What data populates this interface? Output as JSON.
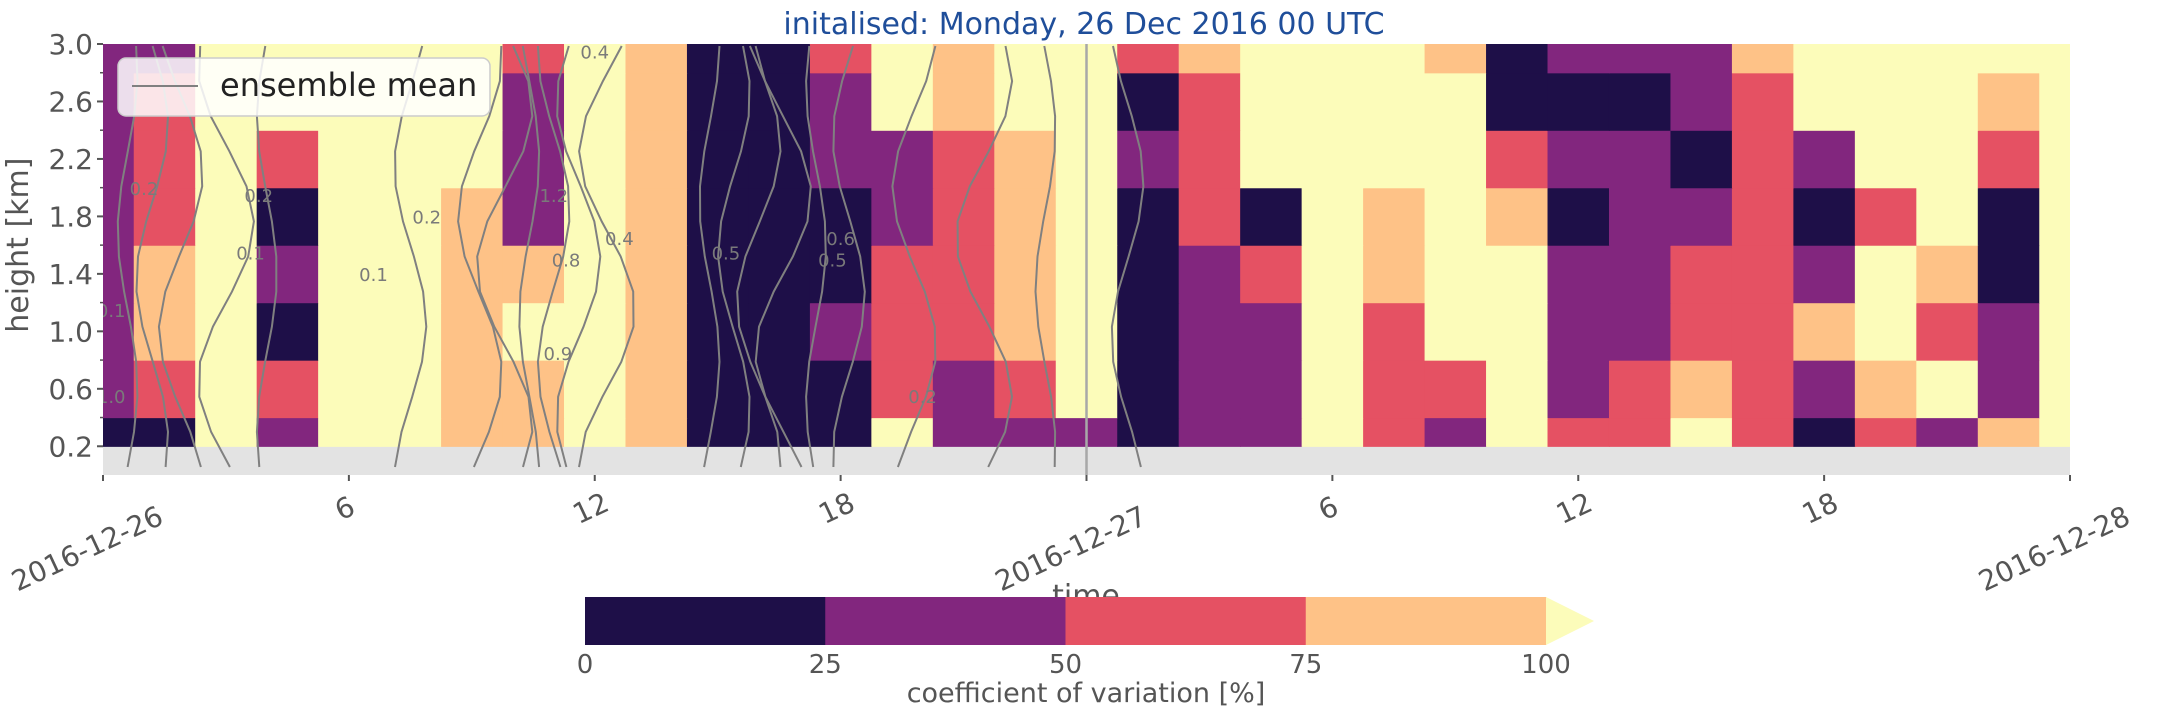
{
  "chart_data": {
    "type": "heatmap",
    "title": "initalised: Monday, 26 Dec 2016 00 UTC",
    "title_color": "#1f4e9a",
    "xlabel": "time",
    "ylabel": "height [km]",
    "x_range_hours": [
      0,
      48
    ],
    "y_range_km": [
      0.0,
      3.0
    ],
    "x_ticks": [
      {
        "hour": 0,
        "label": "2016-12-26"
      },
      {
        "hour": 6,
        "label": "6"
      },
      {
        "hour": 12,
        "label": "12"
      },
      {
        "hour": 18,
        "label": "18"
      },
      {
        "hour": 24,
        "label": "2016-12-27"
      },
      {
        "hour": 30,
        "label": "6"
      },
      {
        "hour": 36,
        "label": "12"
      },
      {
        "hour": 42,
        "label": "18"
      },
      {
        "hour": 48,
        "label": "2016-12-28"
      }
    ],
    "y_ticks": [
      {
        "value": 0.2,
        "label": "0.2"
      },
      {
        "value": 0.6,
        "label": "0.6"
      },
      {
        "value": 1.0,
        "label": "1.0"
      },
      {
        "value": 1.4,
        "label": "1.4"
      },
      {
        "value": 1.8,
        "label": "1.8"
      },
      {
        "value": 2.2,
        "label": "2.2"
      },
      {
        "value": 2.6,
        "label": "2.6"
      },
      {
        "value": 3.0,
        "label": "3.0"
      }
    ],
    "init_line_hour": 24,
    "legend": {
      "label": "ensemble mean",
      "line_color": "#808080",
      "position": "upper-left"
    },
    "colorbar": {
      "label": "coefficient of variation [%]",
      "bounds": [
        0,
        25,
        50,
        75,
        100
      ],
      "tick_labels": [
        "0",
        "25",
        "50",
        "75",
        "100"
      ],
      "colors": [
        "#1e0f48",
        "#82267e",
        "#e55163",
        "#fec287",
        "#fcfcba"
      ],
      "extend": "max"
    },
    "no_data_color": "#e3e3e3",
    "heights_km": [
      0.2,
      0.6,
      1.0,
      1.4,
      1.8,
      2.2,
      2.6,
      3.0
    ],
    "time_hours": [
      0,
      1.5,
      3,
      4.5,
      6,
      7.5,
      9,
      10.5,
      12,
      13.5,
      15,
      16.5,
      18,
      19.5,
      21,
      22.5,
      24,
      25.5,
      27,
      28.5,
      30,
      31.5,
      33,
      34.5,
      36,
      37.5,
      39,
      40.5,
      42,
      43.5,
      45,
      46.5,
      48
    ],
    "cov_percent_rows_by_height": [
      [
        15,
        20,
        110,
        40,
        110,
        110,
        90,
        90,
        110,
        80,
        20,
        10,
        20,
        110,
        35,
        40,
        35,
        10,
        35,
        35,
        110,
        60,
        30,
        110,
        70,
        60,
        110,
        70,
        20,
        60,
        30,
        80,
        110
      ],
      [
        30,
        60,
        110,
        60,
        110,
        110,
        85,
        95,
        110,
        80,
        15,
        10,
        20,
        60,
        35,
        60,
        110,
        10,
        35,
        30,
        110,
        60,
        60,
        110,
        40,
        60,
        80,
        60,
        40,
        80,
        110,
        40,
        110
      ],
      [
        40,
        80,
        110,
        20,
        110,
        110,
        85,
        100,
        110,
        80,
        15,
        15,
        30,
        60,
        50,
        80,
        110,
        10,
        35,
        40,
        110,
        60,
        110,
        110,
        35,
        45,
        50,
        60,
        80,
        110,
        60,
        30,
        110
      ],
      [
        45,
        80,
        110,
        40,
        110,
        110,
        85,
        90,
        110,
        80,
        15,
        10,
        20,
        60,
        70,
        90,
        110,
        15,
        40,
        60,
        110,
        80,
        110,
        110,
        25,
        40,
        50,
        60,
        30,
        110,
        80,
        20,
        110
      ],
      [
        45,
        70,
        110,
        20,
        110,
        110,
        90,
        40,
        110,
        80,
        15,
        10,
        20,
        30,
        60,
        90,
        110,
        20,
        50,
        20,
        110,
        80,
        110,
        90,
        20,
        30,
        40,
        60,
        20,
        60,
        110,
        20,
        110
      ],
      [
        40,
        60,
        110,
        60,
        110,
        110,
        110,
        40,
        110,
        80,
        15,
        10,
        40,
        30,
        60,
        90,
        110,
        40,
        60,
        110,
        110,
        110,
        110,
        60,
        30,
        40,
        20,
        60,
        40,
        110,
        110,
        60,
        110
      ],
      [
        35,
        60,
        110,
        110,
        110,
        110,
        110,
        40,
        110,
        80,
        15,
        10,
        40,
        110,
        80,
        110,
        110,
        20,
        60,
        110,
        110,
        110,
        110,
        20,
        20,
        20,
        30,
        60,
        110,
        110,
        110,
        90,
        110
      ],
      [
        30,
        40,
        110,
        110,
        110,
        110,
        110,
        60,
        110,
        80,
        15,
        10,
        50,
        110,
        90,
        110,
        110,
        60,
        90,
        110,
        110,
        110,
        80,
        20,
        40,
        40,
        40,
        90,
        110,
        110,
        110,
        110,
        110
      ]
    ],
    "mean_contour_labels": [
      "0.1",
      "0.1",
      "0.1",
      "0.2",
      "0.2",
      "0.2",
      "0.2",
      "0.4",
      "0.4",
      "0.5",
      "0.5",
      "0.6",
      "0.8",
      "0.9",
      "1.0",
      "1.2"
    ]
  }
}
